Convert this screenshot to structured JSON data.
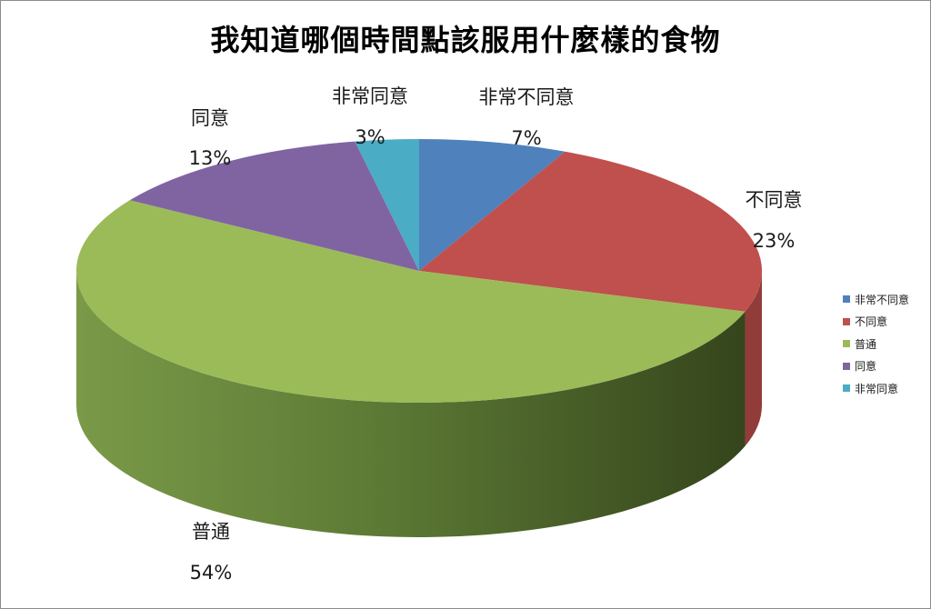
{
  "chart_data": {
    "type": "pie",
    "title": "我知道哪個時間點該服用什麼樣的食物",
    "categories": [
      "非常不同意",
      "不同意",
      "普通",
      "同意",
      "非常同意"
    ],
    "values": [
      7,
      23,
      54,
      13,
      3
    ],
    "percent_labels": [
      "7%",
      "23%",
      "54%",
      "13%",
      "3%"
    ],
    "colors": [
      "#4f81bd",
      "#c0504d",
      "#9bbb59",
      "#8064a2",
      "#4bacc6"
    ],
    "side_colors": [
      "#3b6290",
      "#923c3a",
      "#4e6a28",
      "#5f4a7c",
      "#37839a"
    ],
    "style": "3d",
    "data_labels": true,
    "legend": {
      "position": "right",
      "items": [
        "非常不同意",
        "不同意",
        "普通",
        "同意",
        "非常同意"
      ]
    }
  }
}
